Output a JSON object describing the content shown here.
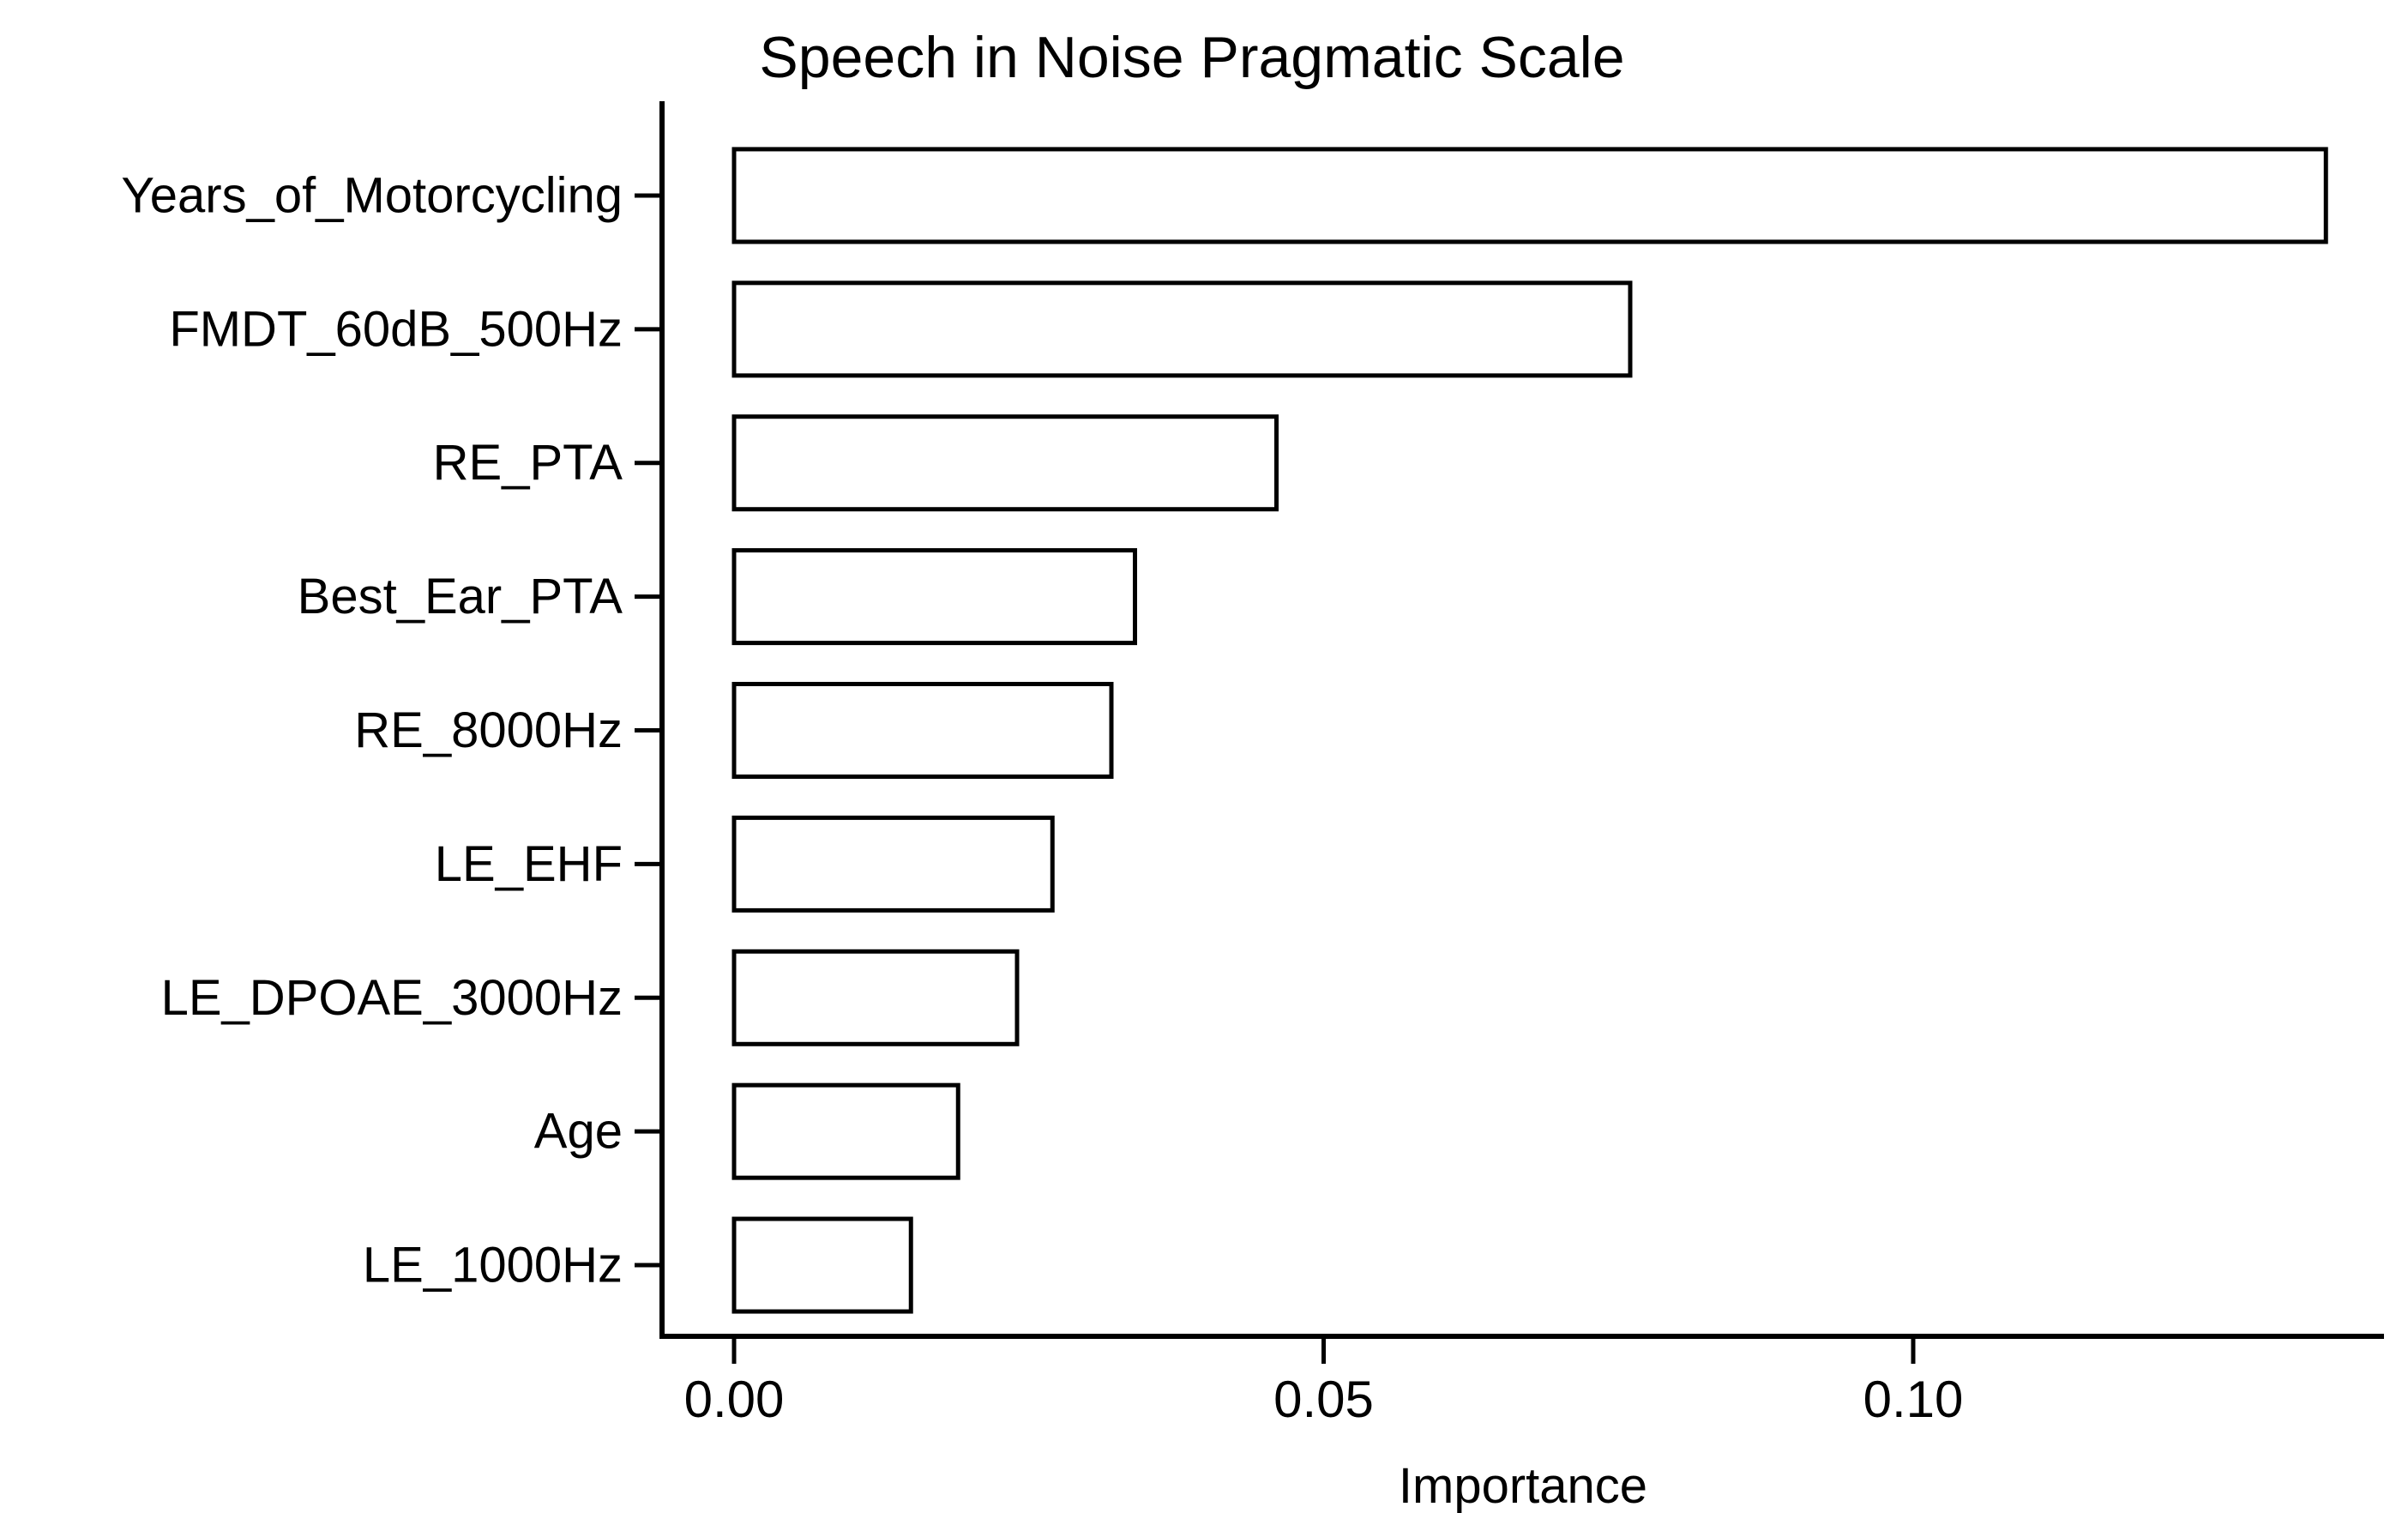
{
  "figure": {
    "background": "#ffffff",
    "foreground": "#000000"
  },
  "chart_data": {
    "type": "bar",
    "orientation": "horizontal",
    "title": "Speech in Noise Pragmatic Scale",
    "xlabel": "Importance",
    "ylabel": "",
    "categories": [
      "Years_of_Motorcycling",
      "FMDT_60dB_500Hz",
      "RE_PTA",
      "Best_Ear_PTA",
      "RE_8000Hz",
      "LE_EHF",
      "LE_DPOAE_3000Hz",
      "Age",
      "LE_1000Hz"
    ],
    "values": [
      0.135,
      0.076,
      0.046,
      0.034,
      0.032,
      0.027,
      0.024,
      0.019,
      0.015
    ],
    "x_ticks": [
      0.0,
      0.05,
      0.1
    ],
    "x_tick_labels": [
      "0.00",
      "0.05",
      "0.10"
    ],
    "xlim": [
      0,
      0.14
    ],
    "grid": false,
    "legend": false,
    "bar_fill": "#ffffff",
    "bar_stroke": "#000000",
    "axis_color": "#000000",
    "text_color": "#000000"
  }
}
